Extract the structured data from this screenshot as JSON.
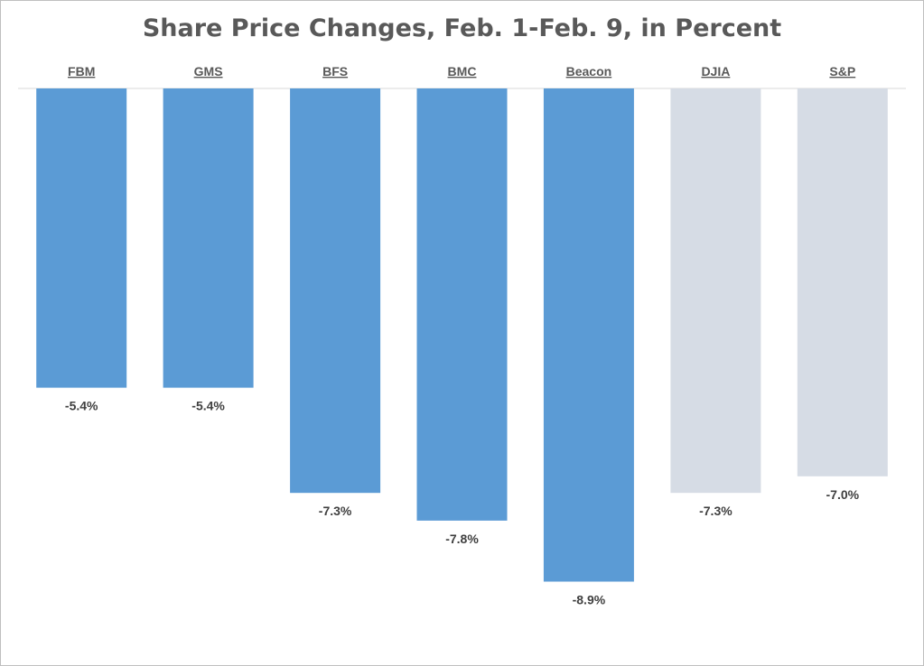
{
  "chart_data": {
    "type": "bar",
    "title": "Share Price Changes, Feb. 1-Feb. 9, in Percent",
    "categories": [
      "FBM",
      "GMS",
      "BFS",
      "BMC",
      "Beacon",
      "DJIA",
      "S&P"
    ],
    "values": [
      -5.4,
      -5.4,
      -7.3,
      -7.8,
      -8.9,
      -7.3,
      -7.0
    ],
    "data_labels": [
      "-5.4%",
      "-5.4%",
      "-7.3%",
      "-7.8%",
      "-8.9%",
      "-7.3%",
      "-7.0%"
    ],
    "units": "percent",
    "ylim": [
      -10,
      0
    ],
    "xlabel": "",
    "ylabel": "",
    "grid": false,
    "legend": "none",
    "colors": {
      "company_bar": "#5b9bd5",
      "index_bar": "#d6dce5",
      "axis_line": "#d9d9d9",
      "label_text": "#595959"
    },
    "bar_color_keys": [
      "company_bar",
      "company_bar",
      "company_bar",
      "company_bar",
      "company_bar",
      "index_bar",
      "index_bar"
    ]
  }
}
